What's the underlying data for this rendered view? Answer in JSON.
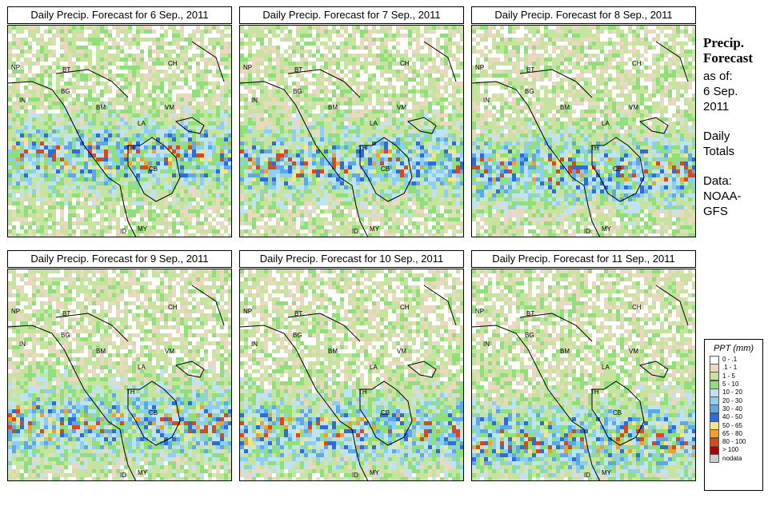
{
  "panels": [
    {
      "title": "Daily Precip. Forecast for  6 Sep., 2011",
      "day": 6
    },
    {
      "title": "Daily Precip. Forecast for  7 Sep., 2011",
      "day": 7
    },
    {
      "title": "Daily Precip. Forecast for  8 Sep., 2011",
      "day": 8
    },
    {
      "title": "Daily Precip. Forecast for  9 Sep., 2011",
      "day": 9
    },
    {
      "title": "Daily Precip. Forecast for  10 Sep., 2011",
      "day": 10
    },
    {
      "title": "Daily Precip. Forecast for  11 Sep., 2011",
      "day": 11
    }
  ],
  "map_labels": [
    "NP",
    "BT",
    "IN",
    "BG",
    "BM",
    "CH",
    "VM",
    "LA",
    "TH",
    "CB",
    "MY",
    "ID"
  ],
  "side_panel": {
    "title_line1": "Precip.",
    "title_line2": "Forecast",
    "asof_line1": "as of:",
    "asof_line2": "6 Sep.",
    "asof_line3": "2011",
    "totals_line1": "Daily",
    "totals_line2": "Totals",
    "data_line1": "Data:",
    "data_line2": "NOAA-",
    "data_line3": "GFS"
  },
  "legend": {
    "title": "PPT (mm)",
    "items": [
      {
        "label": "0 - .1",
        "color": "#ffffff"
      },
      {
        "label": ".1 - 1",
        "color": "#ead8c0"
      },
      {
        "label": "1 - 5",
        "color": "#c7e3a0"
      },
      {
        "label": "5 - 10",
        "color": "#8fe07a"
      },
      {
        "label": "10 - 20",
        "color": "#bfe3f2"
      },
      {
        "label": "20 - 30",
        "color": "#8ccff0"
      },
      {
        "label": "30 - 40",
        "color": "#5da8e8"
      },
      {
        "label": "40 - 50",
        "color": "#2e6cd9"
      },
      {
        "label": "50 - 65",
        "color": "#f5e68a"
      },
      {
        "label": "65 - 80",
        "color": "#f0a030"
      },
      {
        "label": "80 - 100",
        "color": "#d94a1a"
      },
      {
        "label": "> 100",
        "color": "#b00000"
      },
      {
        "label": "nodata",
        "color": "#cccccc"
      }
    ]
  }
}
